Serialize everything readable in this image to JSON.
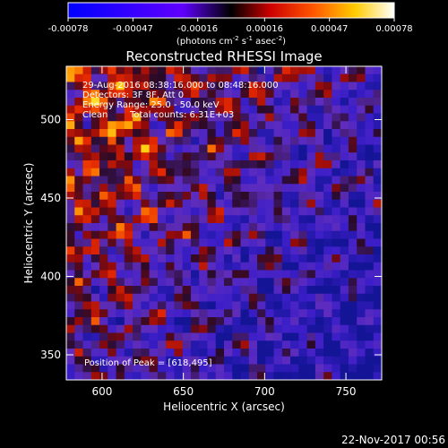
{
  "colorbar": {
    "ticks": [
      "-0.00078",
      "-0.00047",
      "-0.00016",
      "0.00016",
      "0.00047",
      "0.00078"
    ],
    "tick_values": [
      -0.00078,
      -0.00047,
      -0.00016,
      0.00016,
      0.00047,
      0.00078
    ],
    "range": [
      -0.00078,
      0.00078
    ],
    "unit_main": "(photons cm",
    "unit_sup1": "-2",
    "unit_mid1": " s",
    "unit_sup2": "-1",
    "unit_mid2": " asec",
    "unit_sup3": "-2",
    "unit_end": ")",
    "colors": [
      "#0000ff",
      "#5a00ff",
      "#ff0000",
      "#ff6600",
      "#ffdd00",
      "#ffffff"
    ]
  },
  "info": {
    "line1": "29-Aug-2016 08:38:16.000 to 08:48:16.000",
    "line2": "Detectors: 3F 8F, Att 0",
    "line3": "Energy Range: 25.0 - 50.0 keV",
    "line4_method": "Clean",
    "line4_counts": "Total counts: 6.31E+03"
  },
  "peak_label": "Position of Peak = [618,495]",
  "footer_date": "22-Nov-2017 00:56",
  "chart_data": {
    "type": "heatmap",
    "title": "Reconstructed RHESSI Image",
    "xlabel": "Heliocentric X (arcsec)",
    "ylabel": "Heliocentric Y (arcsec)",
    "xlim": [
      578,
      772
    ],
    "ylim": [
      334,
      534
    ],
    "xticks": [
      600,
      650,
      700,
      750
    ],
    "yticks": [
      350,
      400,
      450,
      500
    ],
    "grid_cols": 38,
    "grid_rows": 40,
    "peak": [
      618,
      495
    ],
    "colormap": [
      "#0000ff",
      "#5a00ff",
      "#ff0000",
      "#ff6600",
      "#ffdd00",
      "#ffffff"
    ]
  }
}
